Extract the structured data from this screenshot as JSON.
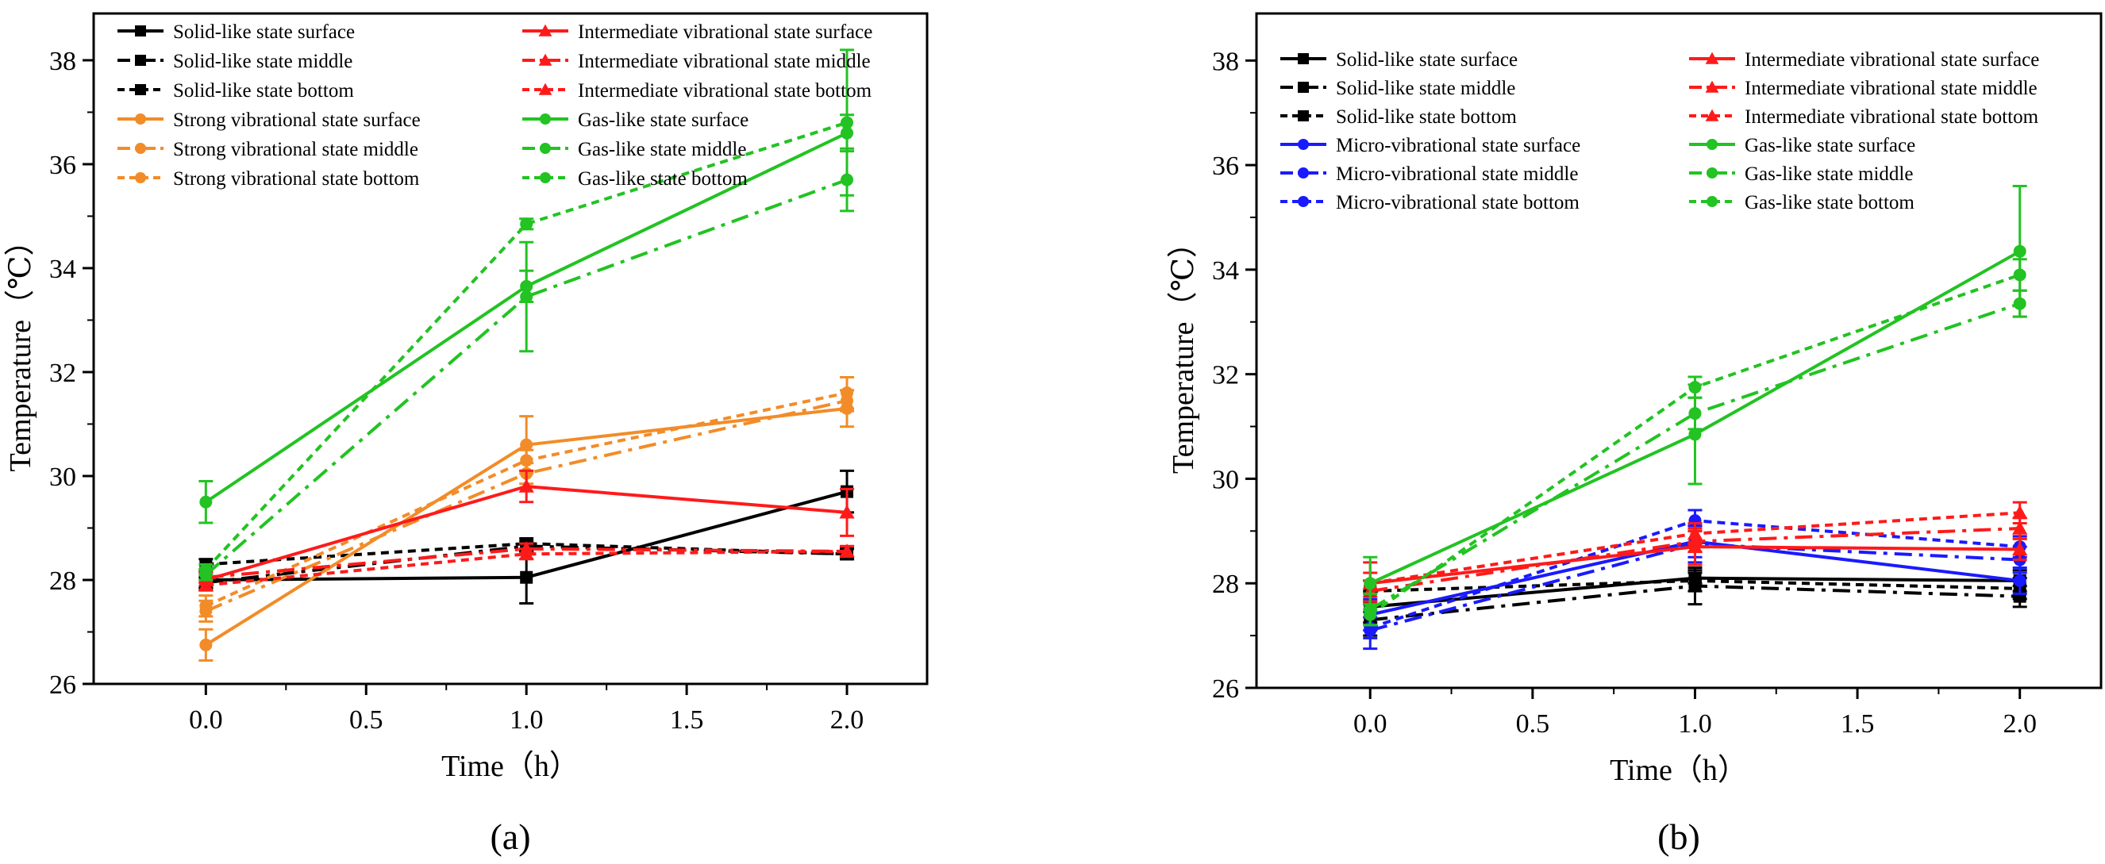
{
  "chart_data": [
    {
      "type": "line",
      "panel_label": "(a)",
      "xlabel": "Time（h）",
      "ylabel": "Temperature（℃）",
      "xlim": [
        -0.35,
        2.25
      ],
      "ylim": [
        26,
        38.9
      ],
      "xticks": [
        0.0,
        0.5,
        1.0,
        1.5,
        2.0
      ],
      "xtick_labels": [
        "0.0",
        "0.5",
        "1.0",
        "1.5",
        "2.0"
      ],
      "yticks": [
        26,
        28,
        30,
        32,
        34,
        36,
        38
      ],
      "ytick_labels": [
        "26",
        "28",
        "30",
        "32",
        "34",
        "36",
        "38"
      ],
      "legend_position": "top-left, two columns",
      "colors": {
        "solid": "#000000",
        "strong": "#f28c28",
        "intermediate": "#ff1a1a",
        "gas": "#22c322"
      },
      "series": [
        {
          "name": "Solid-like state surface",
          "color": "#000000",
          "dash": "solid",
          "marker": "square",
          "x": [
            0,
            1,
            2
          ],
          "y": [
            28.0,
            28.05,
            29.7
          ],
          "err": [
            0.15,
            0.5,
            0.4
          ]
        },
        {
          "name": "Solid-like state middle",
          "color": "#000000",
          "dash": "dashdot",
          "marker": "square",
          "x": [
            0,
            1,
            2
          ],
          "y": [
            27.95,
            28.65,
            28.5
          ],
          "err": [
            0.1,
            0.1,
            0.1
          ]
        },
        {
          "name": "Solid-like state bottom",
          "color": "#000000",
          "dash": "dotted",
          "marker": "square",
          "x": [
            0,
            1,
            2
          ],
          "y": [
            28.3,
            28.7,
            28.5
          ],
          "err": [
            0.1,
            0.1,
            0.1
          ]
        },
        {
          "name": "Strong vibrational state surface",
          "color": "#f28c28",
          "dash": "solid",
          "marker": "circle",
          "x": [
            0,
            1,
            2
          ],
          "y": [
            26.75,
            30.6,
            31.3
          ],
          "err": [
            0.3,
            0.55,
            0.35
          ]
        },
        {
          "name": "Strong vibrational state middle",
          "color": "#f28c28",
          "dash": "dashdot",
          "marker": "circle",
          "x": [
            0,
            1,
            2
          ],
          "y": [
            27.4,
            30.05,
            31.45
          ],
          "err": [
            0.2,
            0.2,
            0.2
          ]
        },
        {
          "name": "Strong vibrational state bottom",
          "color": "#f28c28",
          "dash": "dotted",
          "marker": "circle",
          "x": [
            0,
            1,
            2
          ],
          "y": [
            27.5,
            30.3,
            31.6
          ],
          "err": [
            0.2,
            0.2,
            0.3
          ]
        },
        {
          "name": "Intermediate vibrational state surface",
          "color": "#ff1a1a",
          "dash": "solid",
          "marker": "triangle",
          "x": [
            0,
            1,
            2
          ],
          "y": [
            28.0,
            29.8,
            29.3
          ],
          "err": [
            0.2,
            0.3,
            0.45
          ]
        },
        {
          "name": "Intermediate vibrational state middle",
          "color": "#ff1a1a",
          "dash": "dashdot",
          "marker": "triangle",
          "x": [
            0,
            1,
            2
          ],
          "y": [
            28.05,
            28.6,
            28.55
          ],
          "err": [
            0.1,
            0.1,
            0.1
          ]
        },
        {
          "name": "Intermediate vibrational state bottom",
          "color": "#ff1a1a",
          "dash": "dotted",
          "marker": "triangle",
          "x": [
            0,
            1,
            2
          ],
          "y": [
            27.9,
            28.5,
            28.55
          ],
          "err": [
            0.1,
            0.1,
            0.1
          ]
        },
        {
          "name": "Gas-like state surface",
          "color": "#22c322",
          "dash": "solid",
          "marker": "circle",
          "x": [
            0,
            1,
            2
          ],
          "y": [
            29.5,
            33.65,
            36.6
          ],
          "err": [
            0.4,
            0.3,
            0.35
          ]
        },
        {
          "name": "Gas-like state middle",
          "color": "#22c322",
          "dash": "dashdot",
          "marker": "circle",
          "x": [
            0,
            1,
            2
          ],
          "y": [
            28.1,
            33.45,
            35.7
          ],
          "err": [
            0.1,
            1.05,
            0.6
          ]
        },
        {
          "name": "Gas-like state bottom",
          "color": "#22c322",
          "dash": "dotted",
          "marker": "circle",
          "x": [
            0,
            1,
            2
          ],
          "y": [
            28.2,
            34.85,
            36.8
          ],
          "err": [
            0.1,
            0.1,
            1.4
          ]
        }
      ]
    },
    {
      "type": "line",
      "panel_label": "(b)",
      "xlabel": "Time（h）",
      "ylabel": "Temperature（℃）",
      "xlim": [
        -0.35,
        2.25
      ],
      "ylim": [
        26,
        38.9
      ],
      "xticks": [
        0.0,
        0.5,
        1.0,
        1.5,
        2.0
      ],
      "xtick_labels": [
        "0.0",
        "0.5",
        "1.0",
        "1.5",
        "2.0"
      ],
      "yticks": [
        26,
        28,
        30,
        32,
        34,
        36,
        38
      ],
      "ytick_labels": [
        "26",
        "28",
        "30",
        "32",
        "34",
        "36",
        "38"
      ],
      "legend_position": "top-left, two columns",
      "colors": {
        "solid": "#000000",
        "micro": "#1a1aff",
        "intermediate": "#ff1a1a",
        "gas": "#22c322"
      },
      "series": [
        {
          "name": "Solid-like state surface",
          "color": "#000000",
          "dash": "solid",
          "marker": "square",
          "x": [
            0,
            1,
            2
          ],
          "y": [
            27.55,
            28.1,
            28.05
          ],
          "err": [
            0.3,
            0.1,
            0.2
          ]
        },
        {
          "name": "Solid-like state middle",
          "color": "#000000",
          "dash": "dashdot",
          "marker": "square",
          "x": [
            0,
            1,
            2
          ],
          "y": [
            27.3,
            27.95,
            27.75
          ],
          "err": [
            0.3,
            0.35,
            0.2
          ]
        },
        {
          "name": "Solid-like state bottom",
          "color": "#000000",
          "dash": "dotted",
          "marker": "square",
          "x": [
            0,
            1,
            2
          ],
          "y": [
            27.85,
            28.05,
            27.9
          ],
          "err": [
            0.2,
            0.2,
            0.2
          ]
        },
        {
          "name": "Micro-vibrational state surface",
          "color": "#1a1aff",
          "dash": "solid",
          "marker": "circle",
          "x": [
            0,
            1,
            2
          ],
          "y": [
            27.4,
            28.8,
            28.05
          ],
          "err": [
            0.3,
            0.3,
            0.25
          ]
        },
        {
          "name": "Micro-vibrational state middle",
          "color": "#1a1aff",
          "dash": "dashdot",
          "marker": "circle",
          "x": [
            0,
            1,
            2
          ],
          "y": [
            27.1,
            28.75,
            28.45
          ],
          "err": [
            0.35,
            0.35,
            0.25
          ]
        },
        {
          "name": "Micro-vibrational state bottom",
          "color": "#1a1aff",
          "dash": "dotted",
          "marker": "circle",
          "x": [
            0,
            1,
            2
          ],
          "y": [
            27.15,
            29.2,
            28.7
          ],
          "err": [
            0.2,
            0.2,
            0.2
          ]
        },
        {
          "name": "Intermediate vibrational state surface",
          "color": "#ff1a1a",
          "dash": "solid",
          "marker": "triangle",
          "x": [
            0,
            1,
            2
          ],
          "y": [
            28.0,
            28.7,
            28.65
          ],
          "err": [
            0.4,
            0.35,
            0.2
          ]
        },
        {
          "name": "Intermediate vibrational state middle",
          "color": "#ff1a1a",
          "dash": "dashdot",
          "marker": "triangle",
          "x": [
            0,
            1,
            2
          ],
          "y": [
            27.85,
            28.8,
            29.05
          ],
          "err": [
            0.2,
            0.2,
            0.2
          ]
        },
        {
          "name": "Intermediate vibrational state bottom",
          "color": "#ff1a1a",
          "dash": "dotted",
          "marker": "triangle",
          "x": [
            0,
            1,
            2
          ],
          "y": [
            28.0,
            28.95,
            29.35
          ],
          "err": [
            0.2,
            0.2,
            0.2
          ]
        },
        {
          "name": "Gas-like state surface",
          "color": "#22c322",
          "dash": "solid",
          "marker": "circle",
          "x": [
            0,
            1,
            2
          ],
          "y": [
            28.0,
            30.85,
            34.35
          ],
          "err": [
            0.5,
            0.95,
            1.25
          ]
        },
        {
          "name": "Gas-like state middle",
          "color": "#22c322",
          "dash": "dashdot",
          "marker": "circle",
          "x": [
            0,
            1,
            2
          ],
          "y": [
            27.5,
            31.25,
            33.35
          ],
          "err": [
            0.3,
            0.3,
            0.25
          ]
        },
        {
          "name": "Gas-like state bottom",
          "color": "#22c322",
          "dash": "dotted",
          "marker": "circle",
          "x": [
            0,
            1,
            2
          ],
          "y": [
            27.4,
            31.75,
            33.9
          ],
          "err": [
            0.2,
            0.2,
            0.3
          ]
        }
      ]
    }
  ]
}
